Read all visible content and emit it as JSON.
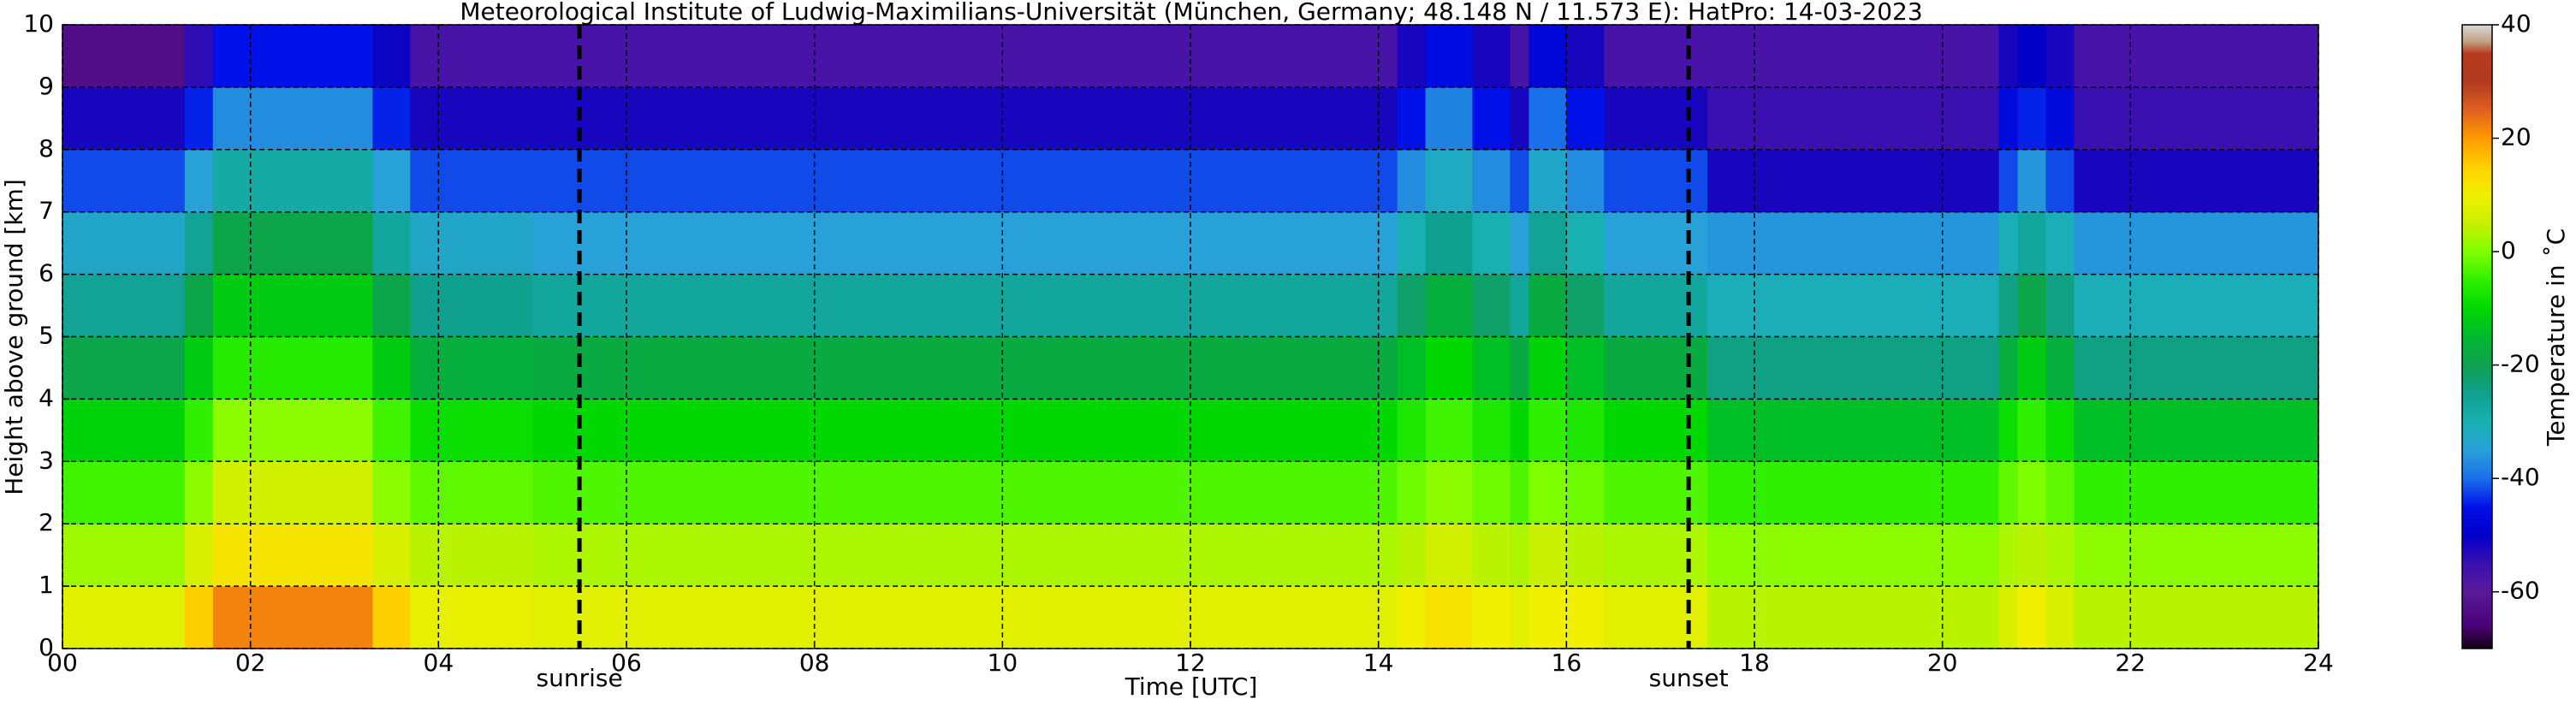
{
  "chart_data": {
    "type": "heatmap",
    "title": "Meteorological Institute of Ludwig-Maximilians-Universität (München, Germany; 48.148 N / 11.573 E):    HatPro: 14-03-2023",
    "x_label": "Time [UTC]",
    "y_label": "Height above ground [km]",
    "colorbar_label": "Temperature in ˚C",
    "x": [
      0,
      1.3,
      1.6,
      3.3,
      3.7,
      5,
      14.2,
      14.5,
      15.0,
      15.4,
      15.6,
      16.0,
      16.4,
      17.5,
      20.6,
      20.8,
      21.1,
      21.4,
      24
    ],
    "y": [
      0,
      1,
      2,
      3,
      4,
      5,
      6,
      7,
      8,
      9,
      10
    ],
    "z": [
      [
        8,
        15,
        22,
        15,
        9,
        8,
        10,
        12,
        10,
        8,
        10,
        10,
        8,
        4,
        7,
        10,
        7,
        4
      ],
      [
        2,
        7,
        12,
        7,
        4,
        3,
        4,
        6,
        4,
        3,
        5,
        4,
        3,
        1,
        3,
        4,
        3,
        1
      ],
      [
        -4,
        1,
        6,
        1,
        -2,
        -3,
        -1,
        1,
        -1,
        -3,
        0,
        -1,
        -3,
        -5,
        -2,
        0,
        -2,
        -5
      ],
      [
        -11,
        -5,
        1,
        -4,
        -9,
        -10,
        -7,
        -4,
        -7,
        -10,
        -5,
        -7,
        -10,
        -14,
        -9,
        -5,
        -9,
        -14
      ],
      [
        -19,
        -12,
        -6,
        -12,
        -17,
        -18,
        -14,
        -10,
        -14,
        -18,
        -11,
        -14,
        -18,
        -24,
        -17,
        -12,
        -17,
        -24
      ],
      [
        -26,
        -19,
        -12,
        -19,
        -25,
        -27,
        -22,
        -17,
        -22,
        -27,
        -18,
        -22,
        -27,
        -31,
        -24,
        -19,
        -24,
        -31
      ],
      [
        -33,
        -26,
        -19,
        -27,
        -33,
        -35,
        -30,
        -25,
        -30,
        -35,
        -26,
        -30,
        -35,
        -36,
        -31,
        -27,
        -31,
        -36
      ],
      [
        -42,
        -35,
        -28,
        -35,
        -42,
        -42,
        -37,
        -32,
        -37,
        -42,
        -33,
        -37,
        -42,
        -52,
        -42,
        -36,
        -42,
        -52
      ],
      [
        -52,
        -44,
        -37,
        -44,
        -52,
        -52,
        -45,
        -38,
        -45,
        -52,
        -40,
        -45,
        -52,
        -55,
        -47,
        -44,
        -47,
        -55
      ],
      [
        -63,
        -54,
        -45,
        -51,
        -57,
        -57,
        -52,
        -46,
        -52,
        -57,
        -48,
        -52,
        -57,
        -57,
        -52,
        -50,
        -52,
        -57
      ]
    ],
    "xlim": [
      0,
      24
    ],
    "ylim": [
      0,
      10
    ],
    "xticks": [
      {
        "value": 0,
        "label": "00"
      },
      {
        "value": 2,
        "label": "02"
      },
      {
        "value": 4,
        "label": "04"
      },
      {
        "value": 6,
        "label": "06"
      },
      {
        "value": 8,
        "label": "08"
      },
      10,
      12,
      14,
      16,
      18,
      20,
      22,
      24
    ],
    "yticks": [
      0,
      1,
      2,
      3,
      4,
      5,
      6,
      7,
      8,
      9,
      10
    ],
    "grid": true,
    "clim": [
      -70,
      40
    ],
    "cticks": [
      -60,
      -40,
      -20,
      0,
      20,
      40
    ],
    "colormap": [
      {
        "value": -70,
        "color": "#100010"
      },
      {
        "value": -66,
        "color": "#4a0078"
      },
      {
        "value": -60,
        "color": "#5a1a9a"
      },
      {
        "value": -55,
        "color": "#3a10b0"
      },
      {
        "value": -50,
        "color": "#0000c8"
      },
      {
        "value": -45,
        "color": "#0010e8"
      },
      {
        "value": -40,
        "color": "#1a70e8"
      },
      {
        "value": -35,
        "color": "#28a0d8"
      },
      {
        "value": -30,
        "color": "#18b0b0"
      },
      {
        "value": -25,
        "color": "#10a090"
      },
      {
        "value": -20,
        "color": "#10a050"
      },
      {
        "value": -15,
        "color": "#00b830"
      },
      {
        "value": -10,
        "color": "#00d800"
      },
      {
        "value": -5,
        "color": "#30f000"
      },
      {
        "value": 0,
        "color": "#80ff00"
      },
      {
        "value": 5,
        "color": "#c8f000"
      },
      {
        "value": 10,
        "color": "#f0f000"
      },
      {
        "value": 15,
        "color": "#ffd000"
      },
      {
        "value": 20,
        "color": "#ff9a00"
      },
      {
        "value": 25,
        "color": "#e06020"
      },
      {
        "value": 30,
        "color": "#b03a20"
      },
      {
        "value": 35,
        "color": "#b83a1c"
      },
      {
        "value": 37,
        "color": "#c0a080"
      },
      {
        "value": 40,
        "color": "#d8d8d8"
      }
    ],
    "vlines": [
      {
        "x": 5.5,
        "label": "sunrise"
      },
      {
        "x": 17.3,
        "label": "sunset"
      }
    ]
  }
}
